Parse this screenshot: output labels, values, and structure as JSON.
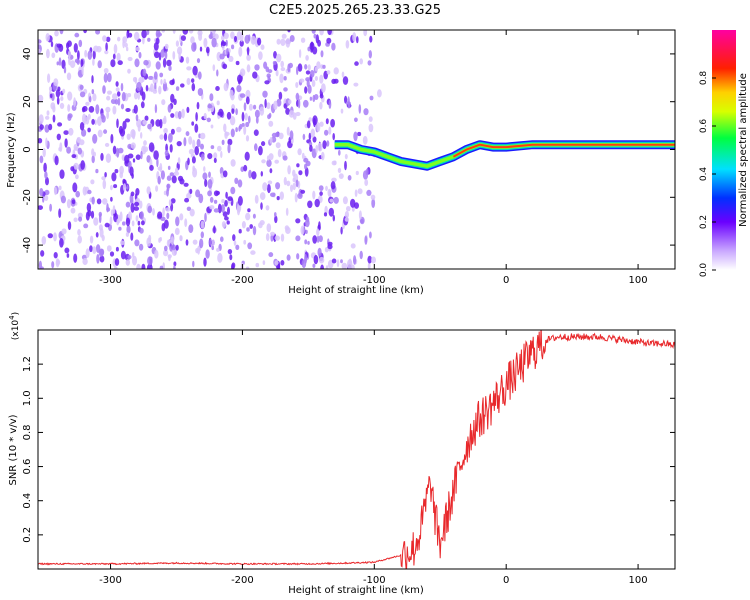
{
  "title": "C2E5.2025.265.23.33.G25",
  "chart_data": [
    {
      "type": "heatmap",
      "name": "spectrogram",
      "xlabel": "Height of straight line (km)",
      "ylabel": "Frequency (Hz)",
      "xlim": [
        -355,
        128
      ],
      "ylim": [
        -50,
        50
      ],
      "xticks": [
        -300,
        -200,
        -100,
        0,
        100
      ],
      "yticks": [
        -40,
        -20,
        0,
        20,
        40
      ],
      "colorbar": {
        "label": "Normalized spectral amplitude",
        "range": [
          0,
          1
        ],
        "ticks": [
          0.0,
          0.2,
          0.4,
          0.6,
          0.8
        ],
        "tick_labels": [
          "0.0",
          "0.2",
          "0.4",
          "0.6",
          "0.8"
        ]
      },
      "noise_region_x": [
        -355,
        -95
      ],
      "signal_trace": {
        "x": [
          -130,
          -120,
          -110,
          -100,
          -90,
          -80,
          -70,
          -60,
          -50,
          -40,
          -30,
          -20,
          -10,
          0,
          20,
          50,
          80,
          100,
          128
        ],
        "freq": [
          2,
          2,
          0,
          -1,
          -3,
          -5,
          -6,
          -7,
          -5,
          -3,
          0,
          2,
          1,
          1,
          2,
          2,
          2,
          2,
          2
        ]
      }
    },
    {
      "type": "line",
      "name": "snr",
      "xlabel": "Height of straight line (km)",
      "ylabel": "SNR (10 * v/v)",
      "y_multiplier": "(x10",
      "y_multiplier_exp": "4",
      "y_multiplier_close": ")",
      "xlim": [
        -355,
        128
      ],
      "ylim": [
        0,
        1.4
      ],
      "xticks": [
        -300,
        -200,
        -100,
        0,
        100
      ],
      "yticks": [
        0.2,
        0.4,
        0.6,
        0.8,
        1.0,
        1.2
      ],
      "ytick_labels": [
        "0.2",
        "0.4",
        "0.6",
        "0.8",
        "1.0",
        "1.2"
      ],
      "series": [
        {
          "name": "SNR",
          "color": "#e8282b",
          "x": [
            -355,
            -300,
            -250,
            -200,
            -150,
            -120,
            -100,
            -90,
            -80,
            -70,
            -65,
            -60,
            -57,
            -55,
            -52,
            -50,
            -45,
            -40,
            -35,
            -30,
            -25,
            -20,
            -15,
            -10,
            -5,
            0,
            5,
            10,
            15,
            20,
            25,
            30,
            40,
            50,
            60,
            70,
            80,
            90,
            100,
            110,
            120,
            128
          ],
          "y": [
            0.03,
            0.03,
            0.035,
            0.03,
            0.03,
            0.035,
            0.04,
            0.06,
            0.08,
            0.12,
            0.22,
            0.42,
            0.5,
            0.35,
            0.22,
            0.15,
            0.3,
            0.45,
            0.6,
            0.72,
            0.82,
            0.88,
            0.92,
            0.97,
            1.02,
            1.08,
            1.12,
            1.17,
            1.22,
            1.27,
            1.31,
            1.34,
            1.36,
            1.36,
            1.36,
            1.36,
            1.35,
            1.34,
            1.33,
            1.32,
            1.32,
            1.31
          ]
        }
      ]
    }
  ]
}
